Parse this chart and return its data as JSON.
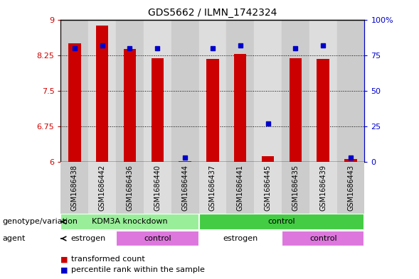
{
  "title": "GDS5662 / ILMN_1742324",
  "samples": [
    "GSM1686438",
    "GSM1686442",
    "GSM1686436",
    "GSM1686440",
    "GSM1686444",
    "GSM1686437",
    "GSM1686441",
    "GSM1686445",
    "GSM1686435",
    "GSM1686439",
    "GSM1686443"
  ],
  "red_values": [
    8.5,
    8.87,
    8.38,
    8.18,
    6.02,
    8.17,
    8.28,
    6.12,
    8.18,
    8.17,
    6.06
  ],
  "blue_values_pct": [
    80,
    82,
    80,
    80,
    3,
    80,
    82,
    27,
    80,
    82,
    3
  ],
  "ylim_left": [
    6.0,
    9.0
  ],
  "ylim_right": [
    0,
    100
  ],
  "yticks_left": [
    6.0,
    6.75,
    7.5,
    8.25,
    9.0
  ],
  "ytick_labels_left": [
    "6",
    "6.75",
    "7.5",
    "8.25",
    "9"
  ],
  "yticks_right": [
    0,
    25,
    50,
    75,
    100
  ],
  "ytick_labels_right": [
    "0",
    "25",
    "50",
    "75",
    "100%"
  ],
  "hlines": [
    6.75,
    7.5,
    8.25
  ],
  "bar_width": 0.45,
  "bar_color": "#cc0000",
  "dot_color": "#0000cc",
  "bar_bottom": 6.0,
  "genotype_groups": [
    {
      "label": "KDM3A knockdown",
      "start": 0,
      "end": 5,
      "color": "#99ee99"
    },
    {
      "label": "control",
      "start": 5,
      "end": 11,
      "color": "#44cc44"
    }
  ],
  "agent_groups": [
    {
      "label": "estrogen",
      "start": 0,
      "end": 2,
      "color": "#ffffff"
    },
    {
      "label": "control",
      "start": 2,
      "end": 5,
      "color": "#dd77dd"
    },
    {
      "label": "estrogen",
      "start": 5,
      "end": 8,
      "color": "#ffffff"
    },
    {
      "label": "control",
      "start": 8,
      "end": 11,
      "color": "#dd77dd"
    }
  ],
  "legend_items": [
    {
      "label": "transformed count",
      "color": "#cc0000",
      "marker": "s"
    },
    {
      "label": "percentile rank within the sample",
      "color": "#0000cc",
      "marker": "s"
    }
  ],
  "genotype_label": "genotype/variation",
  "agent_label": "agent",
  "tick_color_left": "#cc0000",
  "tick_color_right": "#0000cc",
  "sample_bg_colors": [
    "#cccccc",
    "#dddddd"
  ],
  "bg_alpha": 1.0,
  "plot_bg": "#ffffff"
}
